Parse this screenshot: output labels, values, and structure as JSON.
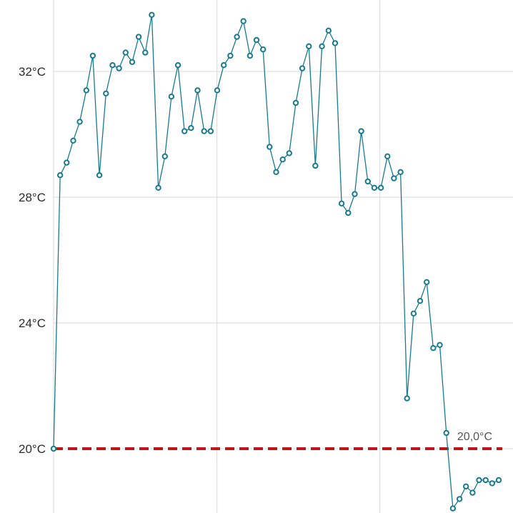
{
  "chart_data": {
    "type": "line",
    "title": "",
    "xlabel": "",
    "ylabel": "",
    "ylim": [
      17.8,
      35
    ],
    "xlim": [
      0,
      100
    ],
    "grid": true,
    "legend": "none",
    "y_ticks": [
      {
        "value": 20,
        "label": "20°C"
      },
      {
        "value": 24,
        "label": "24°C"
      },
      {
        "value": 28,
        "label": "28°C"
      },
      {
        "value": 32,
        "label": "32°C"
      }
    ],
    "x_gridlines": [
      0,
      36.7,
      73.3
    ],
    "reference_line": {
      "value": 20,
      "label": "20,0°C",
      "color": "#c0141c"
    },
    "series": [
      {
        "color": "#177a8f",
        "x": [
          0,
          1.47,
          2.94,
          4.41,
          5.88,
          7.35,
          8.82,
          10.29,
          11.76,
          13.24,
          14.71,
          16.18,
          17.65,
          19.12,
          20.59,
          22.06,
          23.53,
          25.0,
          26.47,
          27.94,
          29.41,
          30.88,
          32.35,
          33.82,
          35.29,
          36.76,
          38.24,
          39.71,
          41.18,
          42.65,
          44.12,
          45.59,
          47.06,
          48.53,
          50.0,
          51.47,
          52.94,
          54.41,
          55.88,
          57.35,
          58.82,
          60.29,
          61.76,
          63.24,
          64.71,
          66.18,
          67.65,
          69.12,
          70.59,
          72.06,
          73.53,
          75.0,
          76.47,
          77.94,
          79.41,
          80.88,
          82.35,
          83.82,
          85.29,
          86.76,
          88.24,
          89.71,
          91.18,
          92.65,
          94.12,
          95.59,
          97.06,
          98.53,
          100.0
        ],
        "y": [
          20.0,
          28.7,
          29.1,
          29.8,
          30.4,
          31.4,
          32.5,
          28.7,
          31.3,
          32.2,
          32.1,
          32.6,
          32.3,
          33.1,
          32.6,
          33.8,
          28.3,
          29.3,
          31.2,
          32.2,
          30.1,
          30.2,
          31.4,
          30.1,
          30.1,
          31.4,
          32.2,
          32.5,
          33.1,
          33.6,
          32.5,
          33.0,
          32.7,
          29.6,
          28.8,
          29.2,
          29.4,
          31.0,
          32.1,
          32.8,
          29.0,
          32.8,
          33.3,
          32.9,
          27.8,
          27.5,
          28.1,
          30.1,
          28.5,
          28.3,
          28.3,
          29.3,
          28.6,
          28.8,
          21.6,
          24.3,
          24.7,
          25.3,
          23.2,
          23.3,
          20.5,
          18.1,
          18.4,
          18.8,
          18.6,
          19.0,
          19.0,
          18.9,
          19.0
        ]
      }
    ]
  }
}
